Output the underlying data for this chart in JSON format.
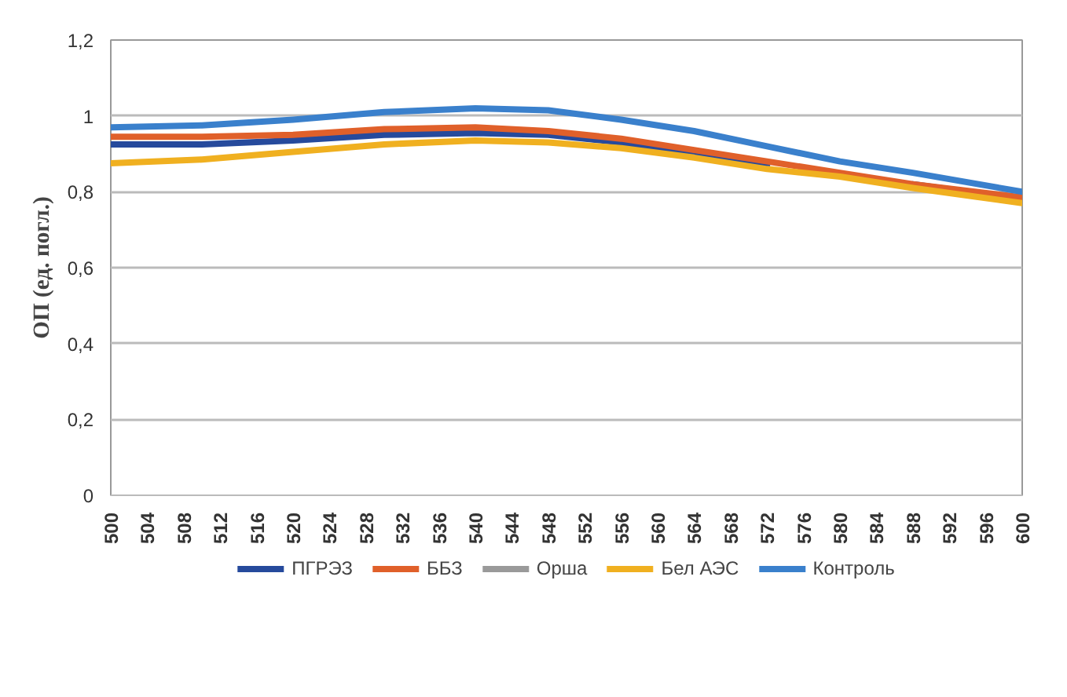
{
  "chart_data": {
    "type": "line",
    "ylabel": "ОП (ед. погл.)",
    "x": [
      500,
      510,
      520,
      530,
      540,
      548,
      556,
      564,
      572,
      580,
      588,
      600
    ],
    "series": [
      {
        "name": "ПГРЭЗ",
        "color": "#264a9c",
        "values": [
          0.925,
          0.925,
          0.935,
          0.95,
          0.955,
          0.95,
          0.93,
          0.9,
          0.87,
          null,
          0.82,
          0.78
        ]
      },
      {
        "name": "ББЗ",
        "color": "#e0602a",
        "values": [
          0.945,
          0.945,
          0.95,
          0.965,
          0.97,
          0.96,
          0.94,
          0.91,
          0.88,
          0.85,
          0.82,
          0.785
        ]
      },
      {
        "name": "Орша",
        "color": "#9a9a9a",
        "values": [
          null,
          null,
          null,
          null,
          null,
          null,
          null,
          null,
          null,
          null,
          null,
          null
        ]
      },
      {
        "name": "Бел АЭС",
        "color": "#f0b020",
        "values": [
          0.875,
          0.885,
          0.905,
          0.925,
          0.935,
          0.93,
          0.915,
          0.89,
          0.86,
          0.84,
          0.81,
          0.77
        ]
      },
      {
        "name": "Контроль",
        "color": "#3a80cc",
        "values": [
          0.97,
          0.975,
          0.99,
          1.01,
          1.02,
          1.015,
          0.99,
          0.96,
          0.92,
          0.88,
          0.85,
          0.8
        ]
      }
    ],
    "xlim": [
      500,
      600
    ],
    "xticks": [
      500,
      504,
      508,
      512,
      516,
      520,
      524,
      528,
      532,
      536,
      540,
      544,
      548,
      552,
      556,
      560,
      564,
      568,
      572,
      576,
      580,
      584,
      588,
      592,
      596,
      600
    ],
    "ylim": [
      0,
      1.2
    ],
    "yticks": [
      0,
      {
        "value": 0.2,
        "label": "0,2"
      },
      {
        "value": 0.4,
        "label": "0,4"
      },
      {
        "value": 0.6,
        "label": "0,6"
      },
      {
        "value": 0.8,
        "label": "0,8"
      },
      1,
      {
        "value": 1.2,
        "label": "1,2"
      }
    ],
    "grid": "y",
    "legend": "bottom",
    "line_style": "solid",
    "marker": "none"
  }
}
